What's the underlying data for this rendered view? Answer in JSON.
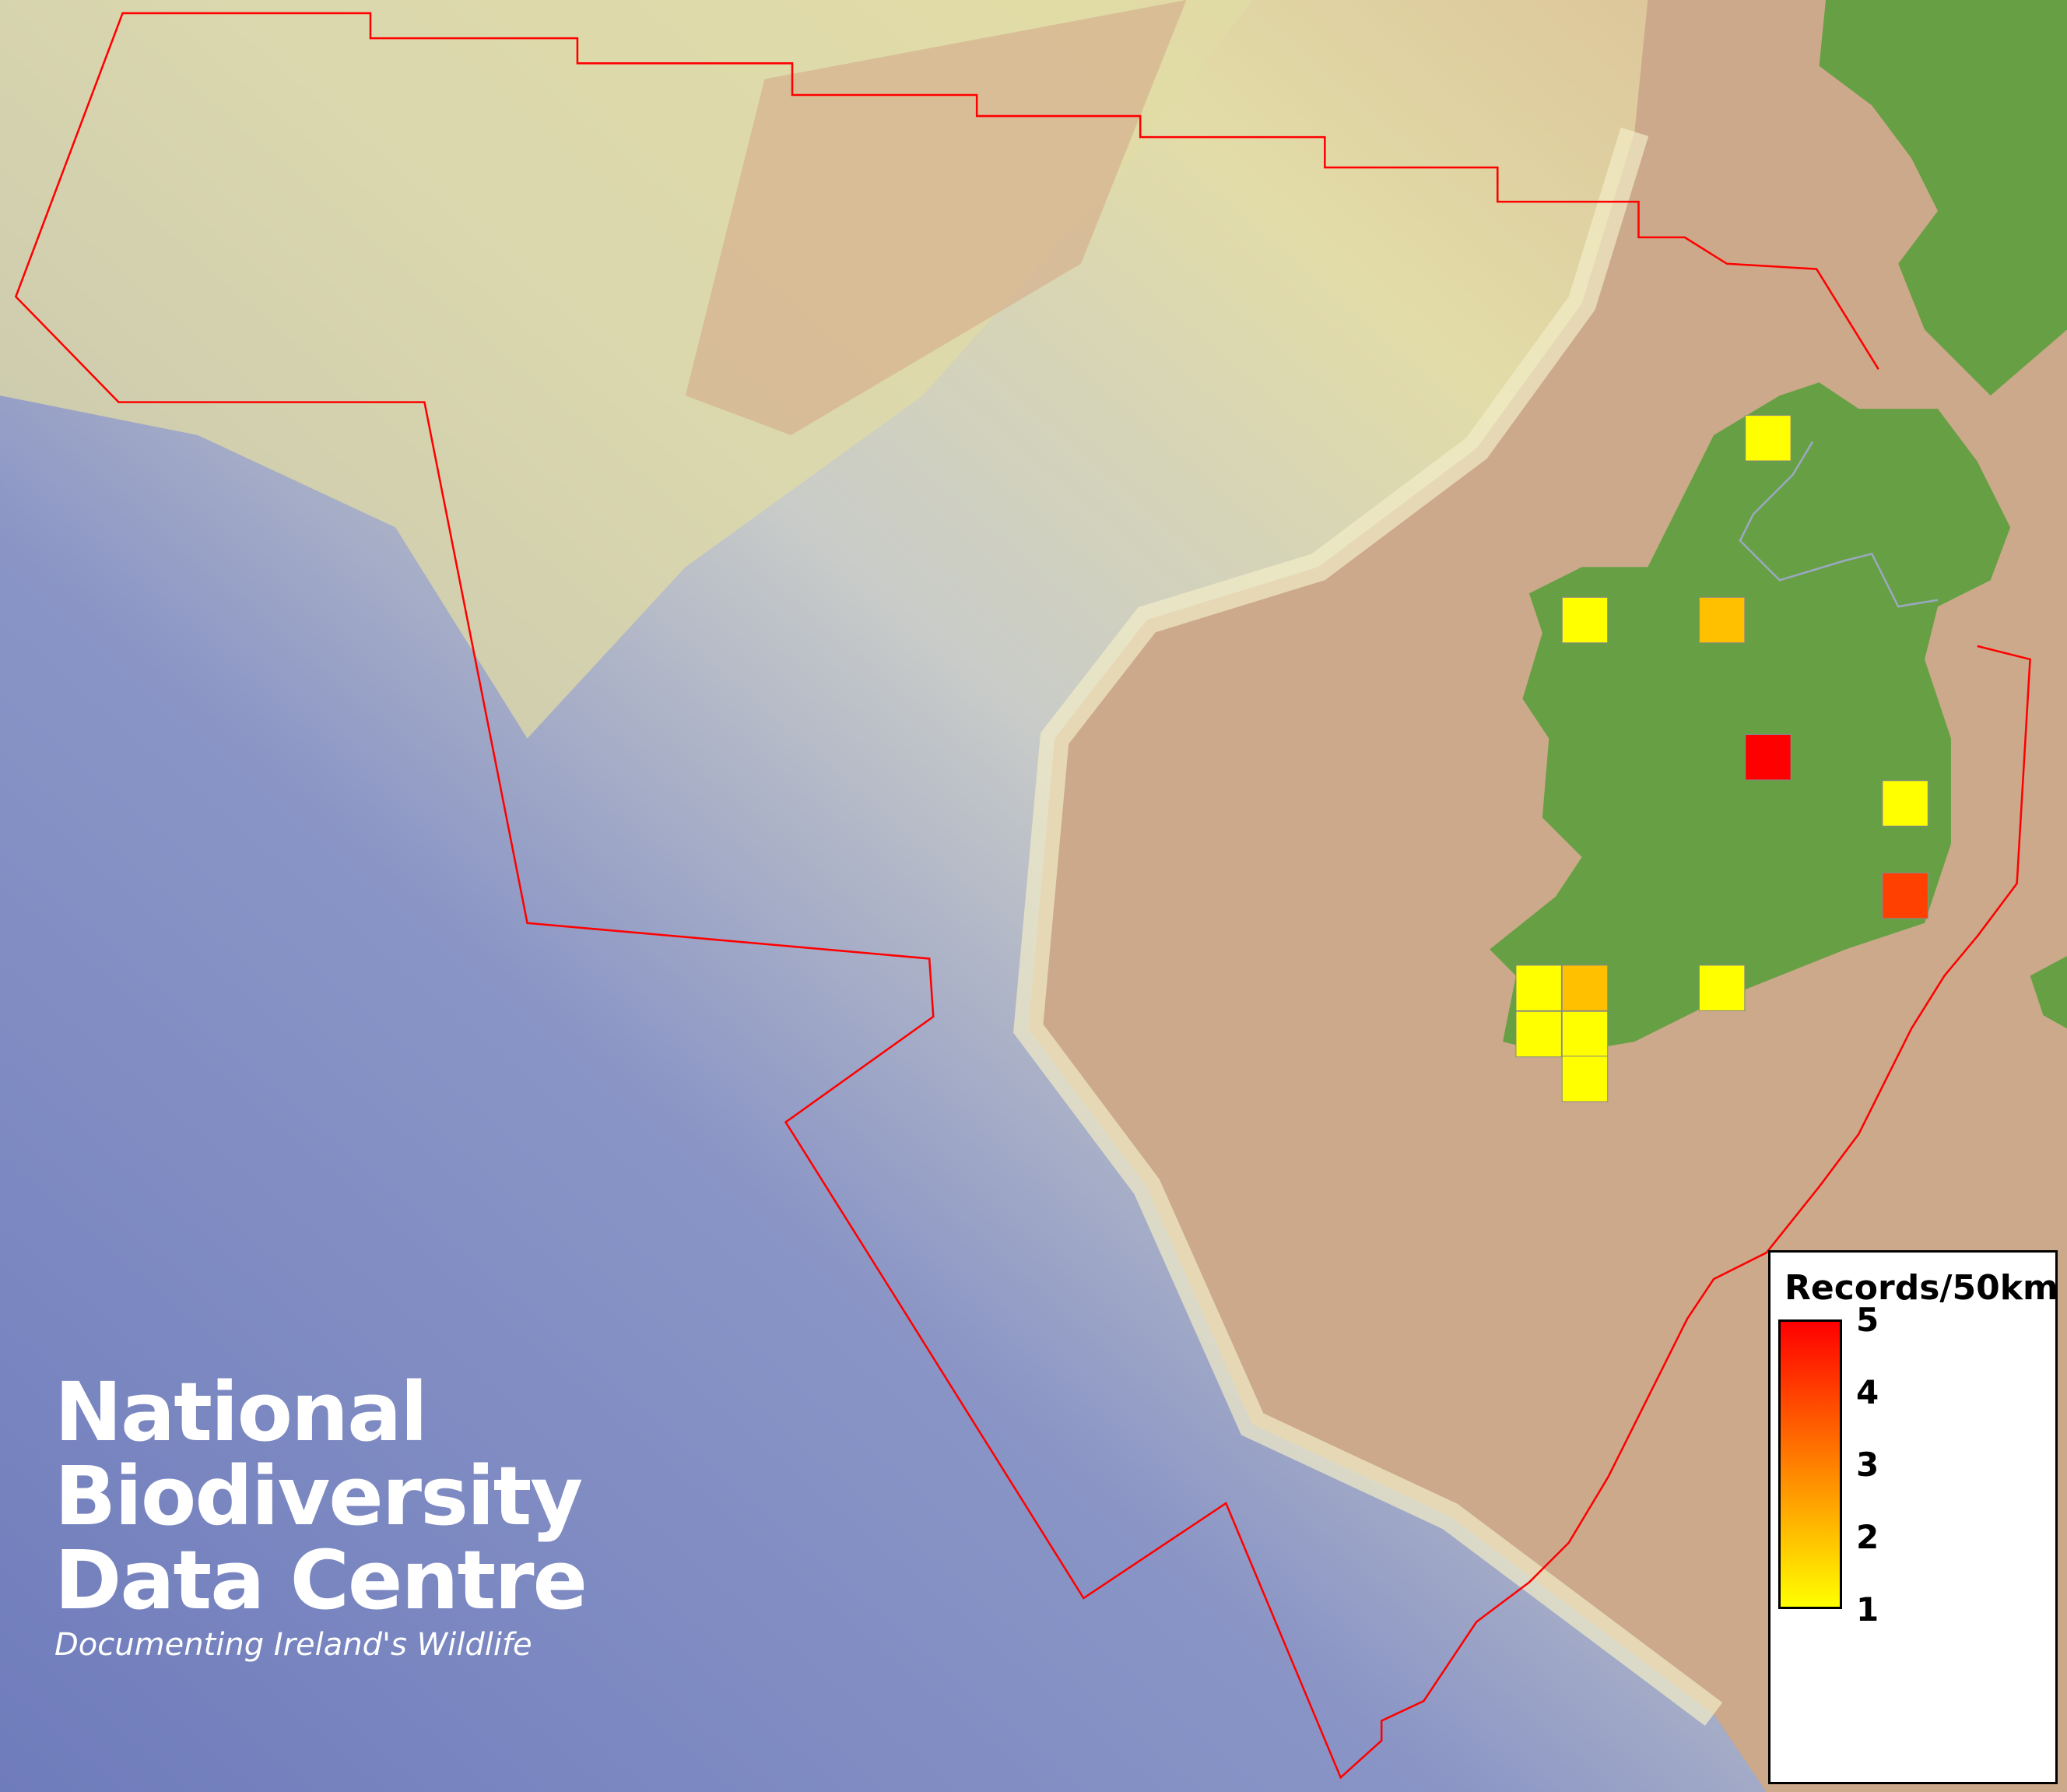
{
  "chart_data": {
    "type": "heatmap",
    "title": "",
    "legend": {
      "title": "Records/50km",
      "ticks": [
        "5",
        "4",
        "3",
        "2",
        "1"
      ],
      "range": [
        1,
        5
      ],
      "placement": "bottom-right",
      "colors": {
        "low": "#ffff00",
        "mid": "#ff8000",
        "high": "#ff0000"
      }
    },
    "cells": [
      {
        "value": 1,
        "color": "#ffff00"
      },
      {
        "value": 1,
        "color": "#ffff00"
      },
      {
        "value": 2,
        "color": "#ffc000"
      },
      {
        "value": 5,
        "color": "#ff0000"
      },
      {
        "value": 1,
        "color": "#ffff00"
      },
      {
        "value": 4,
        "color": "#ff4000"
      },
      {
        "value": 1,
        "color": "#ffff00"
      },
      {
        "value": 2,
        "color": "#ffc000"
      },
      {
        "value": 1,
        "color": "#ffff00"
      },
      {
        "value": 1,
        "color": "#ffff00"
      },
      {
        "value": 1,
        "color": "#ffff00"
      },
      {
        "value": 1,
        "color": "#ffff00"
      }
    ]
  },
  "logo": {
    "line1": "National",
    "line2": "Biodiversity",
    "line3": "Data Centre",
    "tagline": "Documenting Ireland's Wildlife"
  },
  "colors": {
    "boundary": "#ff0000",
    "land": "#67a044",
    "shelf": "#caa88c",
    "deep_sea": "#7a86c0"
  }
}
